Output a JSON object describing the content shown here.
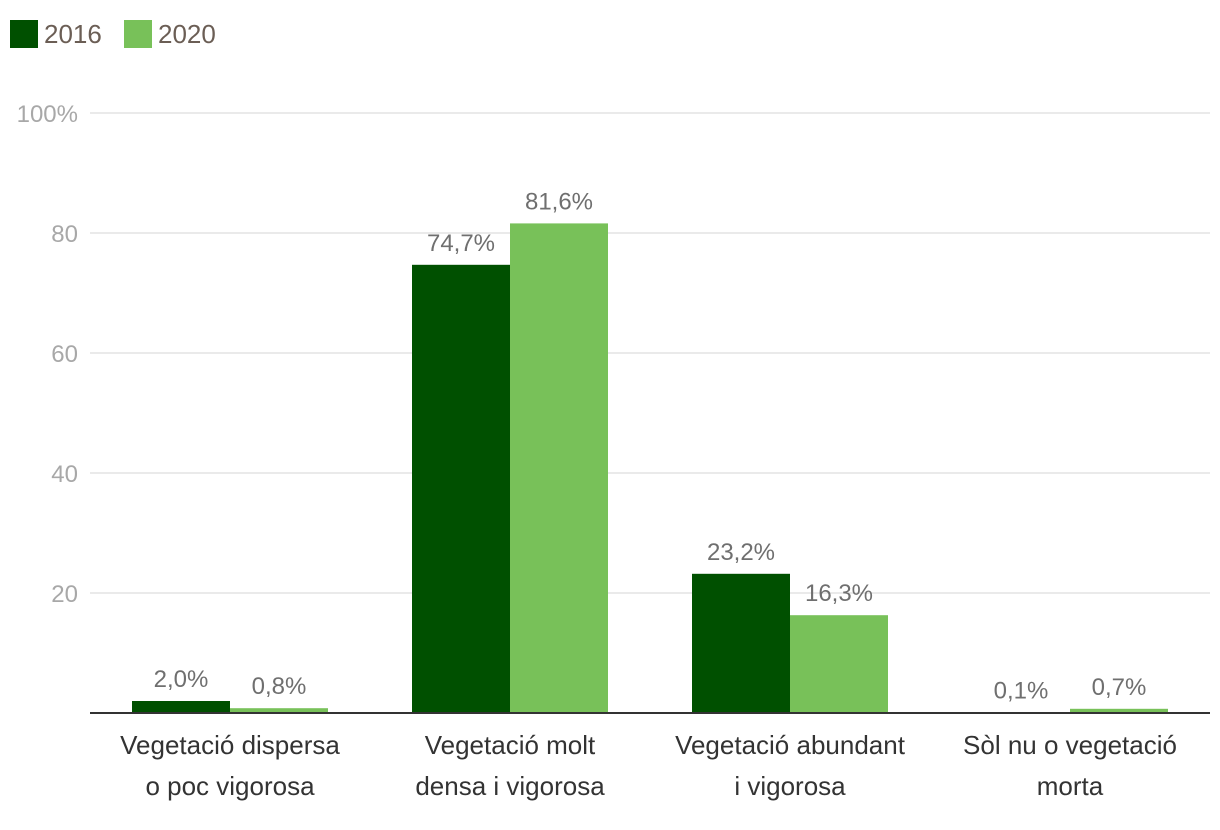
{
  "chart_data": {
    "type": "bar",
    "categories": [
      [
        "Vegetació dispersa",
        "o poc vigorosa"
      ],
      [
        "Vegetació molt",
        "densa i vigorosa"
      ],
      [
        "Vegetació abundant",
        "i vigorosa"
      ],
      [
        "Sòl nu o vegetació",
        "morta"
      ]
    ],
    "series": [
      {
        "name": "2016",
        "color": "#005000",
        "values": [
          2.0,
          74.7,
          23.2,
          0.1
        ],
        "labels": [
          "2,0%",
          "74,7%",
          "23,2%",
          "0,1%"
        ]
      },
      {
        "name": "2020",
        "color": "#78c159",
        "values": [
          0.8,
          81.6,
          16.3,
          0.7
        ],
        "labels": [
          "0,8%",
          "81,6%",
          "16,3%",
          "0,7%"
        ]
      }
    ],
    "yticks": [
      {
        "value": 20,
        "label": "20"
      },
      {
        "value": 40,
        "label": "40"
      },
      {
        "value": 60,
        "label": "60"
      },
      {
        "value": 80,
        "label": "80"
      },
      {
        "value": 100,
        "label": "100%"
      }
    ],
    "ylim": [
      0,
      100
    ],
    "title": "",
    "xlabel": "",
    "ylabel": "",
    "legend_position": "top-left",
    "grid": true
  }
}
